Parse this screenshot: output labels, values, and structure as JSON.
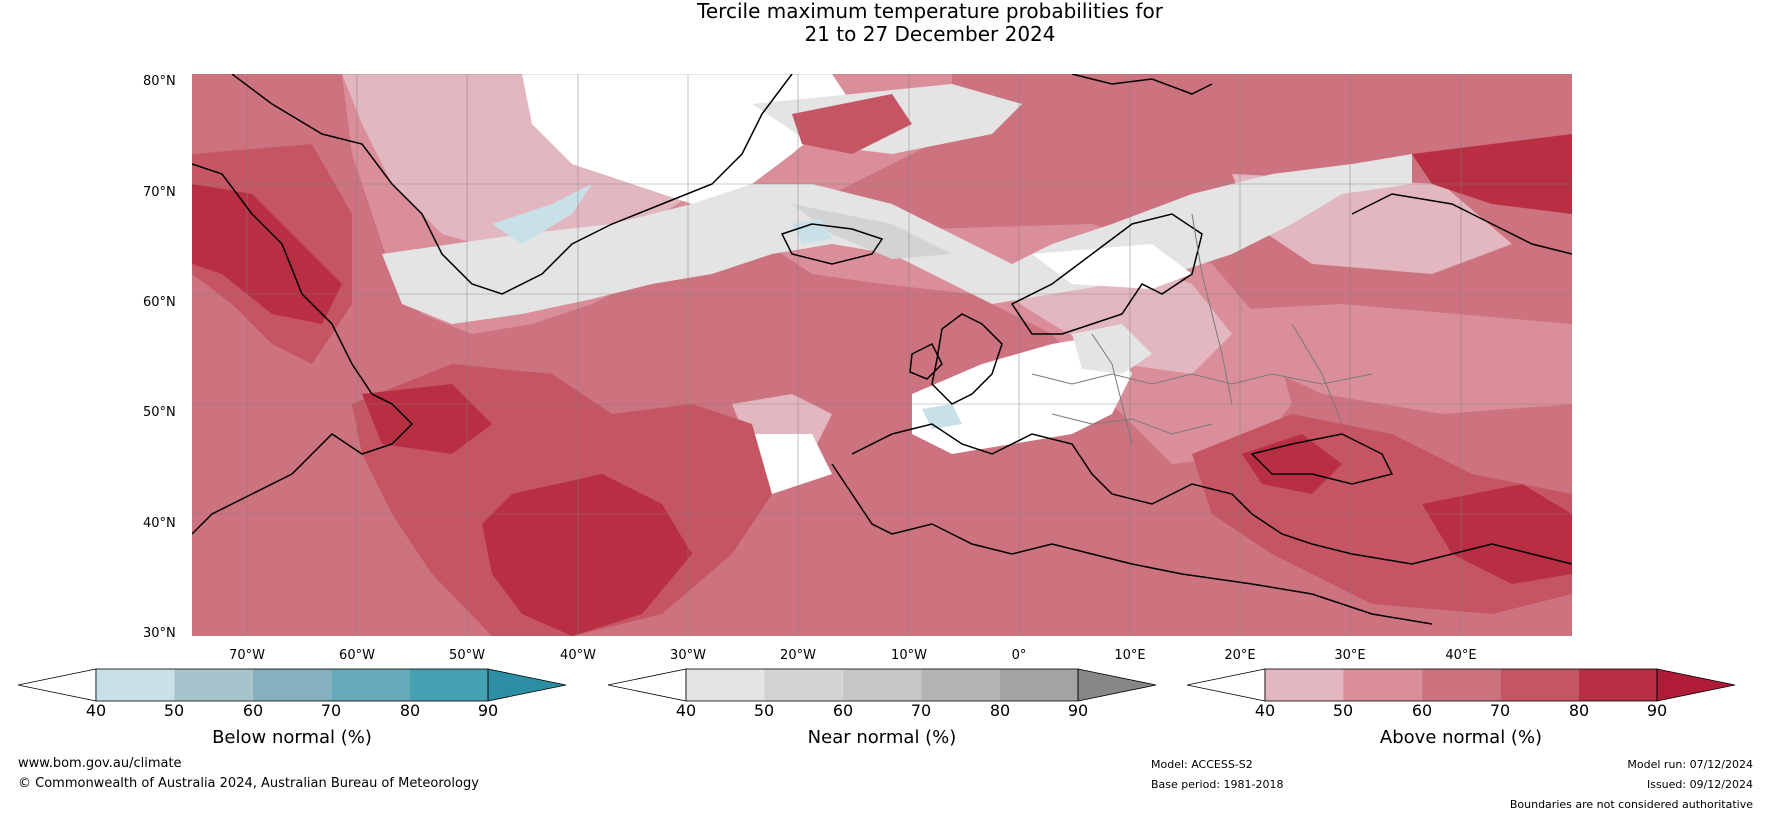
{
  "title": {
    "line1": "Tercile maximum temperature probabilities for",
    "line2": "21 to 27 December 2024"
  },
  "map": {
    "lat_labels": [
      "80°N",
      "70°N",
      "60°N",
      "50°N",
      "40°N",
      "30°N"
    ],
    "lon_labels": [
      "70°W",
      "60°W",
      "50°W",
      "40°W",
      "30°W",
      "20°W",
      "10°W",
      "0°",
      "10°E",
      "20°E",
      "30°E",
      "40°E"
    ]
  },
  "colorbars": [
    {
      "label": "Below normal (%)",
      "ticks": [
        "40",
        "50",
        "60",
        "70",
        "80",
        "90"
      ],
      "colors": [
        "#ffffff",
        "#c8e1e8",
        "#a5c4cc",
        "#86b0be",
        "#66a9b9",
        "#44a2b3",
        "#2b8ea3"
      ]
    },
    {
      "label": "Near normal (%)",
      "ticks": [
        "40",
        "50",
        "60",
        "70",
        "80",
        "90"
      ],
      "colors": [
        "#ffffff",
        "#e4e4e4",
        "#d3d3d3",
        "#c6c6c6",
        "#b4b4b4",
        "#a3a3a3",
        "#878787"
      ]
    },
    {
      "label": "Above normal (%)",
      "ticks": [
        "40",
        "50",
        "60",
        "70",
        "80",
        "90"
      ],
      "colors": [
        "#ffffff",
        "#e2b7bf",
        "#d98e9a",
        "#cd727f",
        "#c65564",
        "#b82e42",
        "#b01c37"
      ]
    }
  ],
  "footer": {
    "website": "www.bom.gov.au/climate",
    "copyright": "© Commonwealth of Australia 2024, Australian Bureau of Meteorology",
    "model": "Model: ACCESS-S2",
    "base_period": "Base period: 1981-2018",
    "model_run": "Model run: 07/12/2024",
    "issued": "Issued: 09/12/2024",
    "disclaimer": "Boundaries are not considered authoritative"
  }
}
